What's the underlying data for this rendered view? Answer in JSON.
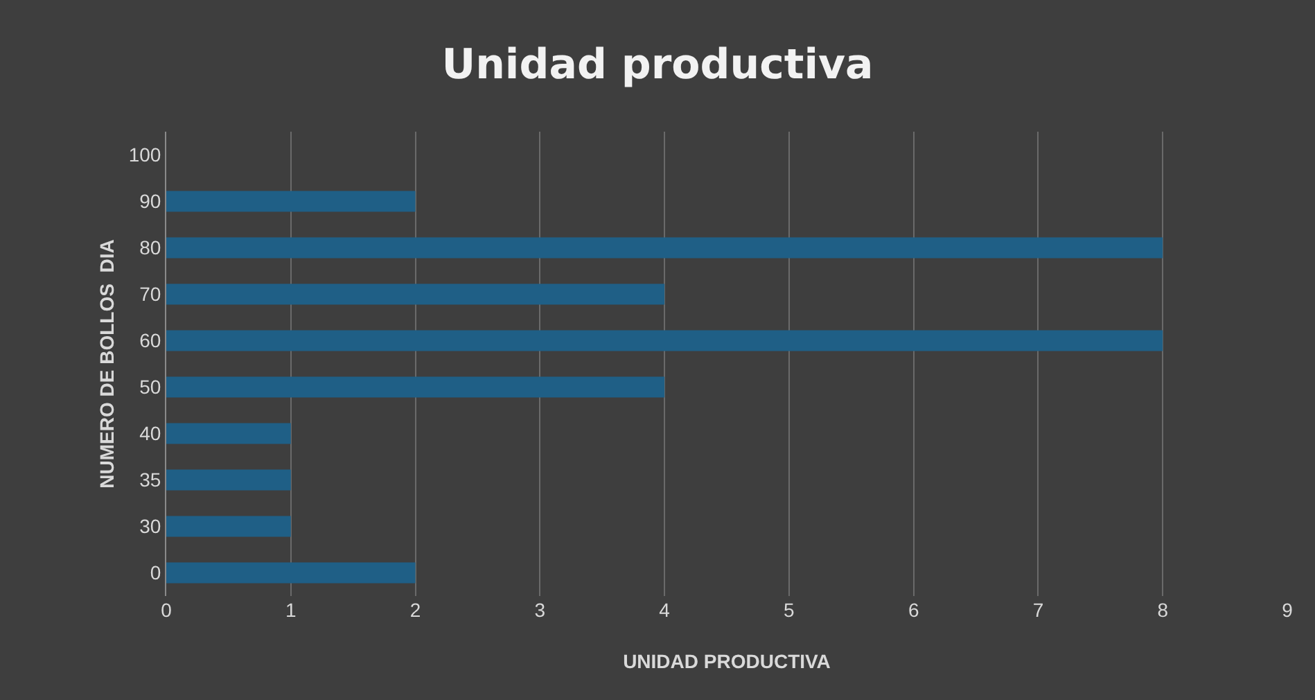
{
  "chart_data": {
    "type": "bar",
    "orientation": "horizontal",
    "title": "Unidad productiva",
    "xlabel": "UNIDAD PRODUCTIVA",
    "ylabel": "NUMERO DE BOLLOS  DIA",
    "categories": [
      "100",
      "90",
      "80",
      "70",
      "60",
      "50",
      "40",
      "35",
      "30",
      "0"
    ],
    "values": [
      null,
      2,
      8,
      4,
      8,
      4,
      1,
      1,
      1,
      2
    ],
    "color": "#1f5f86",
    "xlim": [
      0,
      9
    ],
    "xticks": [
      0,
      1,
      2,
      3,
      4,
      5,
      6,
      7,
      8,
      9
    ],
    "grid": "x"
  }
}
